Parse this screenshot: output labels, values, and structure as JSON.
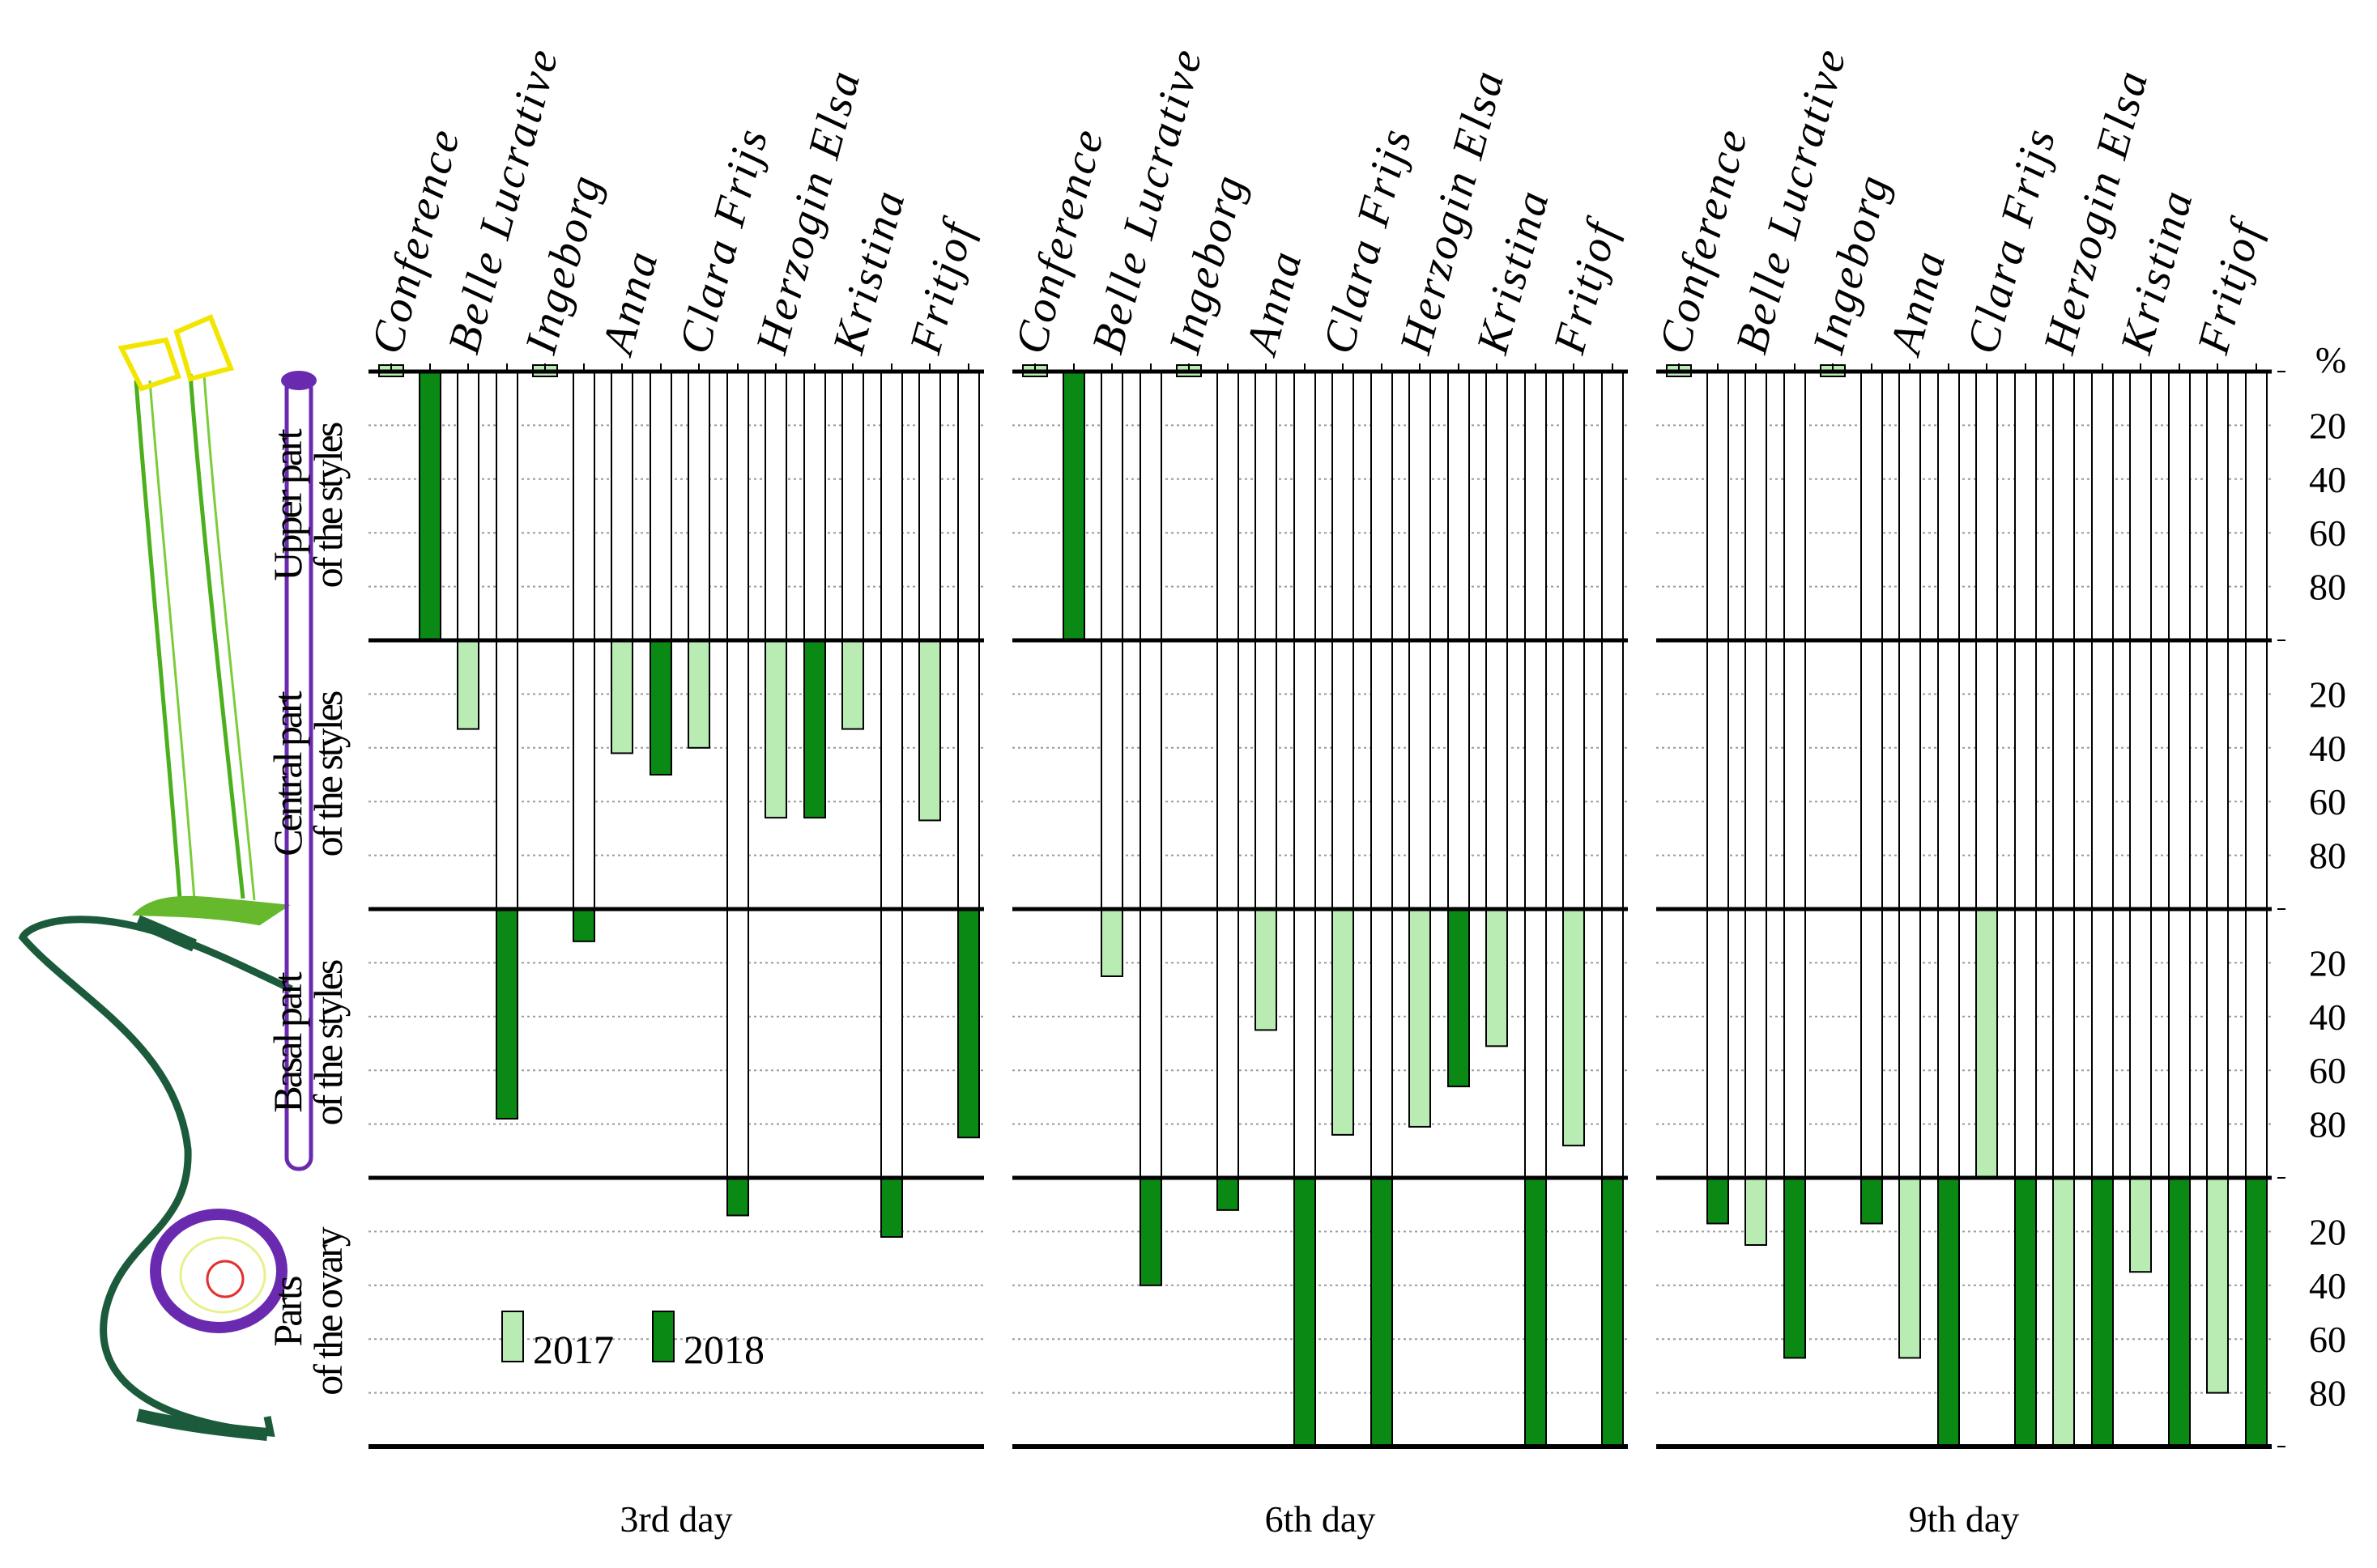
{
  "chart_data": {
    "type": "bar",
    "title": "",
    "unit_label": "%",
    "y_ticks": [
      "20",
      "40",
      "60",
      "80"
    ],
    "regions": [
      {
        "line1": "Upper part",
        "line2": "of the styles"
      },
      {
        "line1": "Central part",
        "line2": "of the styles"
      },
      {
        "line1": "Basal part",
        "line2": "of the styles"
      },
      {
        "line1": "Parts",
        "line2": "of the ovary"
      }
    ],
    "cultivars": [
      "Conference",
      "Belle Lucrative",
      "Ingeborg",
      "Anna",
      "Clara Frijs",
      "Herzogin Elsa",
      "Kristina",
      "Fritjof"
    ],
    "legend": [
      {
        "label": "2017",
        "color": "#b9ecb3"
      },
      {
        "label": "2018",
        "color": "#0a8a14"
      }
    ],
    "panels": [
      {
        "label": "3rd day",
        "bars": [
          {
            "cultivar": "Conference",
            "y2017": {
              "region": 0,
              "value": 0
            },
            "y2018": {
              "region": 0,
              "value": 100
            }
          },
          {
            "cultivar": "Belle Lucrative",
            "y2017": {
              "region": 1,
              "value": 33
            },
            "y2018": {
              "region": 2,
              "value": 78
            }
          },
          {
            "cultivar": "Ingeborg",
            "y2017": {
              "region": 0,
              "value": 0
            },
            "y2018": {
              "region": 2,
              "value": 12
            }
          },
          {
            "cultivar": "Anna",
            "y2017": {
              "region": 1,
              "value": 42
            },
            "y2018": {
              "region": 1,
              "value": 50
            }
          },
          {
            "cultivar": "Clara Frijs",
            "y2017": {
              "region": 1,
              "value": 40
            },
            "y2018": {
              "region": 3,
              "value": 14
            }
          },
          {
            "cultivar": "Herzogin Elsa",
            "y2017": {
              "region": 1,
              "value": 66
            },
            "y2018": {
              "region": 1,
              "value": 66
            }
          },
          {
            "cultivar": "Kristina",
            "y2017": {
              "region": 1,
              "value": 33
            },
            "y2018": {
              "region": 3,
              "value": 22
            }
          },
          {
            "cultivar": "Fritjof",
            "y2017": {
              "region": 1,
              "value": 67
            },
            "y2018": {
              "region": 2,
              "value": 85
            }
          }
        ]
      },
      {
        "label": "6th day",
        "bars": [
          {
            "cultivar": "Conference",
            "y2017": {
              "region": 0,
              "value": 0
            },
            "y2018": {
              "region": 0,
              "value": 100
            }
          },
          {
            "cultivar": "Belle Lucrative",
            "y2017": {
              "region": 2,
              "value": 25
            },
            "y2018": {
              "region": 3,
              "value": 40
            }
          },
          {
            "cultivar": "Ingeborg",
            "y2017": {
              "region": 0,
              "value": 0
            },
            "y2018": {
              "region": 3,
              "value": 12
            }
          },
          {
            "cultivar": "Anna",
            "y2017": {
              "region": 2,
              "value": 45
            },
            "y2018": {
              "region": 3,
              "value": 100
            }
          },
          {
            "cultivar": "Clara Frijs",
            "y2017": {
              "region": 2,
              "value": 84
            },
            "y2018": {
              "region": 3,
              "value": 100
            }
          },
          {
            "cultivar": "Herzogin Elsa",
            "y2017": {
              "region": 2,
              "value": 81
            },
            "y2018": {
              "region": 2,
              "value": 66
            }
          },
          {
            "cultivar": "Kristina",
            "y2017": {
              "region": 2,
              "value": 51
            },
            "y2018": {
              "region": 3,
              "value": 100
            }
          },
          {
            "cultivar": "Fritjof",
            "y2017": {
              "region": 2,
              "value": 88
            },
            "y2018": {
              "region": 3,
              "value": 100
            }
          }
        ]
      },
      {
        "label": "9th day",
        "bars": [
          {
            "cultivar": "Conference",
            "y2017": {
              "region": 0,
              "value": 0
            },
            "y2018": {
              "region": 3,
              "value": 17
            }
          },
          {
            "cultivar": "Belle Lucrative",
            "y2017": {
              "region": 3,
              "value": 25
            },
            "y2018": {
              "region": 3,
              "value": 67
            }
          },
          {
            "cultivar": "Ingeborg",
            "y2017": {
              "region": 0,
              "value": 0
            },
            "y2018": {
              "region": 3,
              "value": 17
            }
          },
          {
            "cultivar": "Anna",
            "y2017": {
              "region": 3,
              "value": 67
            },
            "y2018": {
              "region": 3,
              "value": 100
            }
          },
          {
            "cultivar": "Clara Frijs",
            "y2017": {
              "region": 2,
              "value": 100
            },
            "y2018": {
              "region": 3,
              "value": 100
            }
          },
          {
            "cultivar": "Herzogin Elsa",
            "y2017": {
              "region": 3,
              "value": 100
            },
            "y2018": {
              "region": 3,
              "value": 100
            }
          },
          {
            "cultivar": "Kristina",
            "y2017": {
              "region": 3,
              "value": 35
            },
            "y2018": {
              "region": 3,
              "value": 100
            }
          },
          {
            "cultivar": "Fritjof",
            "y2017": {
              "region": 3,
              "value": 80
            },
            "y2018": {
              "region": 3,
              "value": 100
            }
          }
        ]
      }
    ]
  }
}
